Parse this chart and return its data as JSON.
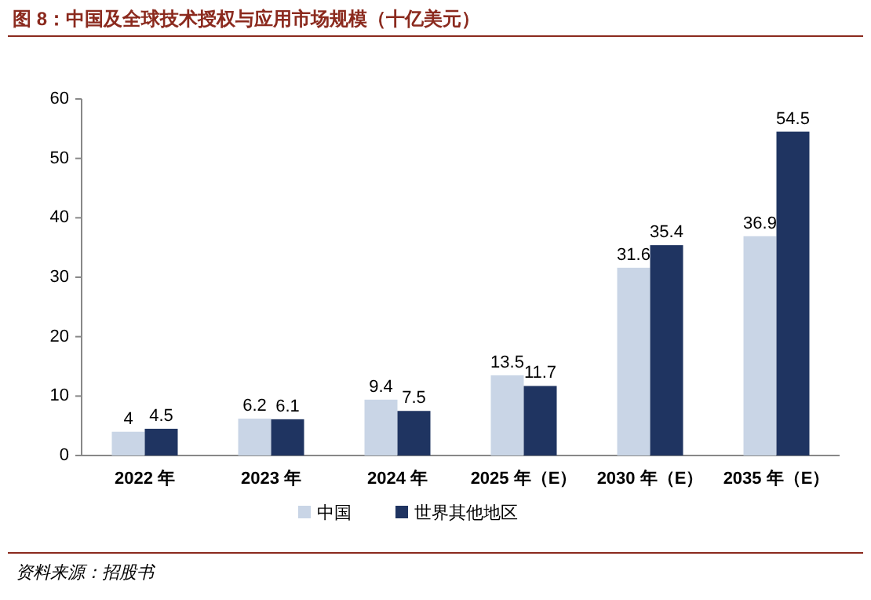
{
  "chart_data": {
    "type": "bar",
    "title": "图 8：中国及全球技术授权与应用市场规模（十亿美元）",
    "categories": [
      "2022 年",
      "2023 年",
      "2024 年",
      "2025 年（E）",
      "2030 年（E）",
      "2035 年（E）"
    ],
    "series": [
      {
        "name": "中国",
        "color": "#c9d5e6",
        "values": [
          4,
          6.2,
          9.4,
          13.5,
          31.6,
          36.9
        ]
      },
      {
        "name": "世界其他地区",
        "color": "#1f3461",
        "values": [
          4.5,
          6.1,
          7.5,
          11.7,
          35.4,
          54.5
        ]
      }
    ],
    "ylim": [
      0,
      60
    ],
    "yticks": [
      0,
      10,
      20,
      30,
      40,
      50,
      60
    ],
    "data_labels": true,
    "legend": "bottom",
    "annotations": [
      "资料来源：招股书"
    ]
  }
}
